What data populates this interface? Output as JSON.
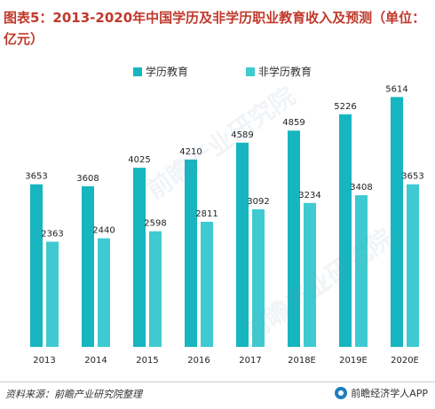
{
  "title": "图表5：2013-2020年中国学历及非学历职业教育收入及预测（单位：亿元）",
  "source": "资料来源：前瞻产业研究院整理",
  "brand": "前瞻经济学人APP",
  "watermark": "前瞻产业研究院",
  "colors": {
    "series_a": "#17b5c0",
    "series_b": "#3fcad1",
    "title": "#c0392b"
  },
  "chart_data": {
    "type": "bar",
    "title": "图表5：2013-2020年中国学历及非学历职业教育收入及预测（单位：亿元）",
    "categories": [
      "2013",
      "2014",
      "2015",
      "2016",
      "2017",
      "2018E",
      "2019E",
      "2020E"
    ],
    "series": [
      {
        "name": "学历教育",
        "values": [
          3653,
          3608,
          4025,
          4210,
          4589,
          4859,
          5226,
          5614
        ]
      },
      {
        "name": "非学历教育",
        "values": [
          2363,
          2440,
          2598,
          2811,
          3092,
          3234,
          3408,
          3653
        ]
      }
    ],
    "ylim": [
      0,
      6000
    ],
    "grid": false,
    "legend_position": "top-center"
  }
}
